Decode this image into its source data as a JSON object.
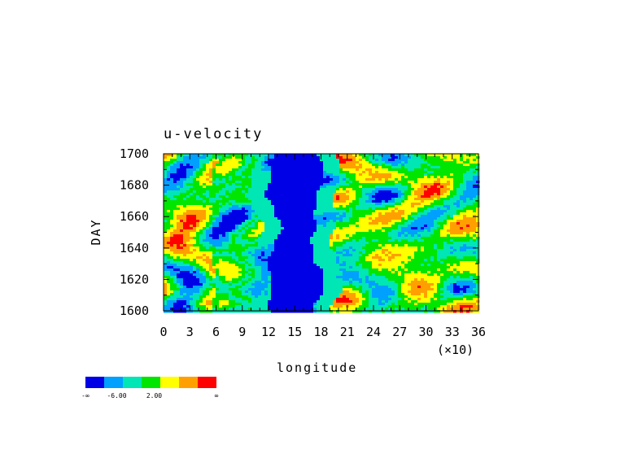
{
  "chart_data": {
    "type": "heatmap",
    "title": "u-velocity",
    "xlabel": "longitude",
    "ylabel": "DAY",
    "x_scale_note": "(×10)",
    "xlim": [
      0,
      36
    ],
    "ylim": [
      1600,
      1700
    ],
    "x_ticks": [
      "0",
      "3",
      "6",
      "9",
      "12",
      "15",
      "18",
      "21",
      "24",
      "27",
      "30",
      "33",
      "36"
    ],
    "x_tick_values": [
      0,
      3,
      6,
      9,
      12,
      15,
      18,
      21,
      24,
      27,
      30,
      33,
      36
    ],
    "y_ticks": [
      "1600",
      "1620",
      "1640",
      "1660",
      "1680",
      "1700"
    ],
    "y_tick_values": [
      1600,
      1620,
      1640,
      1660,
      1680,
      1700
    ],
    "colorbar": {
      "colors": [
        "#0000e6",
        "#00a0ff",
        "#00e6b4",
        "#00e600",
        "#ffff00",
        "#ffa000",
        "#ff0000"
      ],
      "labels": [
        "-∞",
        "-6.00",
        "2.00",
        "∞"
      ]
    },
    "features": {
      "low_band_longitude_range": [
        12.5,
        17.5
      ],
      "low_band_level_index": 0
    }
  }
}
